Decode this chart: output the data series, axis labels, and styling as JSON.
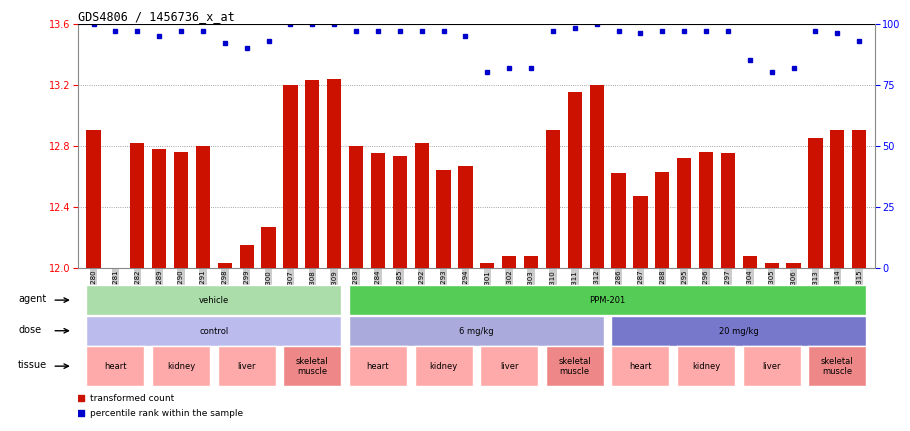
{
  "title": "GDS4806 / 1456736_x_at",
  "samples": [
    "GSM783280",
    "GSM783281",
    "GSM783282",
    "GSM783289",
    "GSM783290",
    "GSM783291",
    "GSM783298",
    "GSM783299",
    "GSM783300",
    "GSM783307",
    "GSM783308",
    "GSM783309",
    "GSM783283",
    "GSM783284",
    "GSM783285",
    "GSM783292",
    "GSM783293",
    "GSM783294",
    "GSM783301",
    "GSM783302",
    "GSM783303",
    "GSM783310",
    "GSM783311",
    "GSM783312",
    "GSM783286",
    "GSM783287",
    "GSM783288",
    "GSM783295",
    "GSM783296",
    "GSM783297",
    "GSM783304",
    "GSM783305",
    "GSM783306",
    "GSM783313",
    "GSM783314",
    "GSM783315"
  ],
  "bar_values": [
    12.9,
    12.0,
    12.82,
    12.78,
    12.76,
    12.8,
    12.03,
    12.15,
    12.27,
    13.2,
    13.23,
    13.24,
    12.8,
    12.75,
    12.73,
    12.82,
    12.64,
    12.67,
    12.03,
    12.08,
    12.08,
    12.9,
    13.15,
    13.2,
    12.62,
    12.47,
    12.63,
    12.72,
    12.76,
    12.75,
    12.08,
    12.03,
    12.03,
    12.85,
    12.9,
    12.9
  ],
  "percentile_values": [
    100,
    97,
    97,
    95,
    97,
    97,
    92,
    90,
    93,
    100,
    100,
    100,
    97,
    97,
    97,
    97,
    97,
    95,
    80,
    82,
    82,
    97,
    98,
    100,
    97,
    96,
    97,
    97,
    97,
    97,
    85,
    80,
    82,
    97,
    96,
    93
  ],
  "ymin": 12.0,
  "ymax": 13.6,
  "yticks": [
    12.0,
    12.4,
    12.8,
    13.2,
    13.6
  ],
  "right_yticks": [
    0,
    25,
    50,
    75,
    100
  ],
  "bar_color": "#cc1100",
  "dot_color": "#0000cc",
  "grid_color": "#555555",
  "bg_color": "#ffffff",
  "agent_groups": [
    {
      "label": "vehicle",
      "start": 0,
      "end": 11,
      "color": "#aaddaa"
    },
    {
      "label": "PPM-201",
      "start": 12,
      "end": 35,
      "color": "#55cc55"
    }
  ],
  "dose_groups": [
    {
      "label": "control",
      "start": 0,
      "end": 11,
      "color": "#bbbbee"
    },
    {
      "label": "6 mg/kg",
      "start": 12,
      "end": 23,
      "color": "#aaaadd"
    },
    {
      "label": "20 mg/kg",
      "start": 24,
      "end": 35,
      "color": "#7777cc"
    }
  ],
  "tissue_groups": [
    {
      "label": "heart",
      "start": 0,
      "end": 2,
      "color": "#ffaaaa"
    },
    {
      "label": "kidney",
      "start": 3,
      "end": 5,
      "color": "#ffaaaa"
    },
    {
      "label": "liver",
      "start": 6,
      "end": 8,
      "color": "#ffaaaa"
    },
    {
      "label": "skeletal\nmuscle",
      "start": 9,
      "end": 11,
      "color": "#ee8888"
    },
    {
      "label": "heart",
      "start": 12,
      "end": 14,
      "color": "#ffaaaa"
    },
    {
      "label": "kidney",
      "start": 15,
      "end": 17,
      "color": "#ffaaaa"
    },
    {
      "label": "liver",
      "start": 18,
      "end": 20,
      "color": "#ffaaaa"
    },
    {
      "label": "skeletal\nmuscle",
      "start": 21,
      "end": 23,
      "color": "#ee8888"
    },
    {
      "label": "heart",
      "start": 24,
      "end": 26,
      "color": "#ffaaaa"
    },
    {
      "label": "kidney",
      "start": 27,
      "end": 29,
      "color": "#ffaaaa"
    },
    {
      "label": "liver",
      "start": 30,
      "end": 32,
      "color": "#ffaaaa"
    },
    {
      "label": "skeletal\nmuscle",
      "start": 33,
      "end": 35,
      "color": "#ee8888"
    }
  ],
  "legend_items": [
    {
      "label": "transformed count",
      "color": "#cc1100"
    },
    {
      "label": "percentile rank within the sample",
      "color": "#0000cc"
    }
  ]
}
